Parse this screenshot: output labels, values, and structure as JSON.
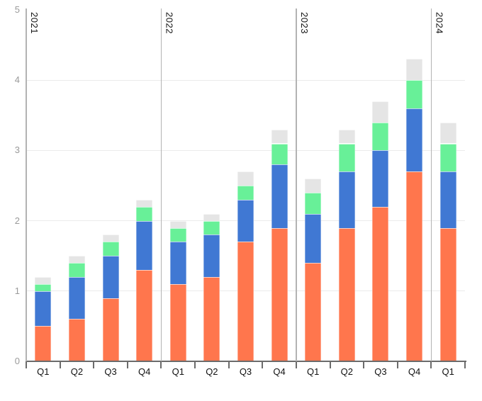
{
  "page": {
    "background": "#ffffff"
  },
  "chart_data": {
    "type": "bar",
    "stacked": true,
    "title": "",
    "xlabel": "",
    "ylabel": "",
    "ylim": [
      0,
      5
    ],
    "y_ticks": [
      0,
      1,
      2,
      3,
      4,
      5
    ],
    "y_tick_labels": [
      "0",
      "1",
      "2",
      "3",
      "4",
      "5"
    ],
    "grid": true,
    "legend_position": "none",
    "categories": [
      "Q1",
      "Q2",
      "Q3",
      "Q4",
      "Q1",
      "Q2",
      "Q3",
      "Q4",
      "Q1",
      "Q2",
      "Q3",
      "Q4",
      "Q1"
    ],
    "year_groups": [
      {
        "label": "2021",
        "start_index": 0,
        "quarters": 4
      },
      {
        "label": "2022",
        "start_index": 4,
        "quarters": 4
      },
      {
        "label": "2023",
        "start_index": 8,
        "quarters": 4
      },
      {
        "label": "2024",
        "start_index": 12,
        "quarters": 1
      }
    ],
    "series": [
      {
        "name": "orange",
        "color": "#FF764D",
        "values": [
          0.5,
          0.6,
          0.9,
          1.3,
          1.1,
          1.2,
          1.7,
          1.9,
          1.4,
          1.9,
          2.2,
          2.7,
          1.9
        ]
      },
      {
        "name": "blue",
        "color": "#4078D3",
        "values": [
          0.5,
          0.6,
          0.6,
          0.7,
          0.6,
          0.6,
          0.6,
          0.9,
          0.7,
          0.8,
          0.8,
          0.9,
          0.8
        ]
      },
      {
        "name": "green",
        "color": "#68F098",
        "values": [
          0.1,
          0.2,
          0.2,
          0.2,
          0.2,
          0.2,
          0.2,
          0.3,
          0.3,
          0.4,
          0.4,
          0.4,
          0.4
        ]
      },
      {
        "name": "gray",
        "color": "#E5E5E5",
        "values": [
          0.1,
          0.1,
          0.1,
          0.1,
          0.1,
          0.1,
          0.2,
          0.2,
          0.2,
          0.2,
          0.3,
          0.3,
          0.3
        ]
      }
    ],
    "colors": {
      "axis_line": "#6B6B6B",
      "tick": "#6B6B6B",
      "gridline": "#EBEBEB",
      "year_separator": "#B3B3B3",
      "x_label": "#111111",
      "y_label": "#9A9A9A",
      "year_label": "#111111",
      "plot_background": "#FFFFFF"
    }
  }
}
